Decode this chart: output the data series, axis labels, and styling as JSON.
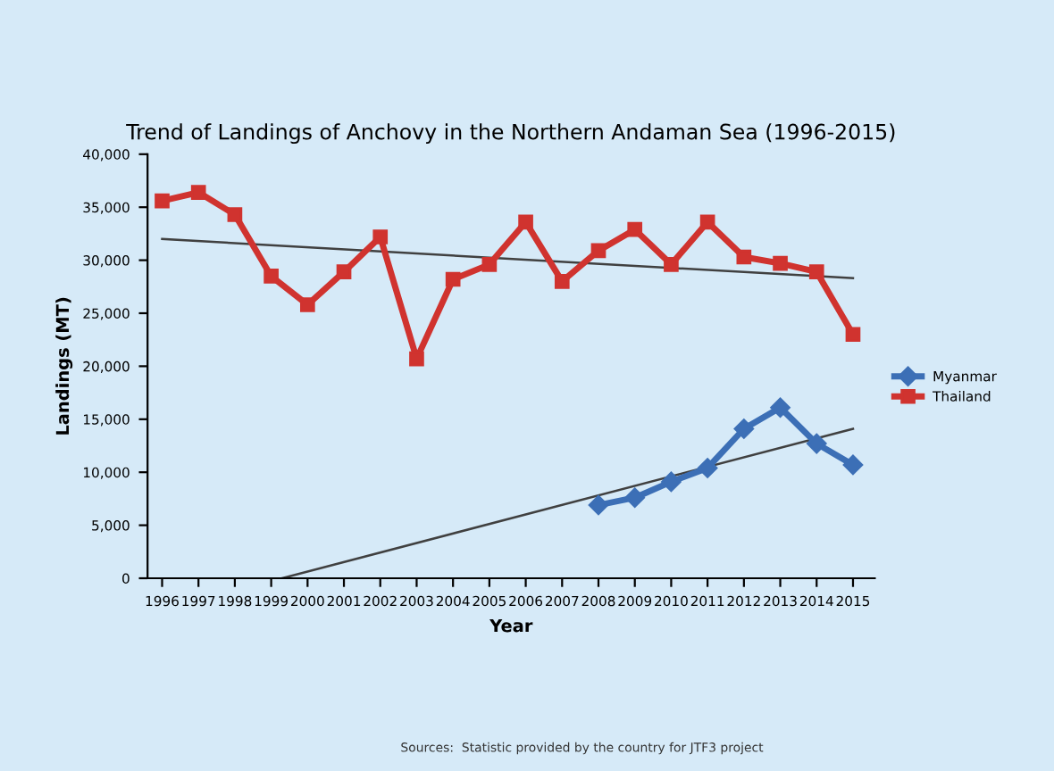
{
  "chart_data": {
    "type": "line",
    "title": "Trend of Landings of Anchovy in the Northern Andaman Sea (1996-2015)",
    "xlabel": "Year",
    "ylabel": "Landings (MT)",
    "x": [
      1996,
      1997,
      1998,
      1999,
      2000,
      2001,
      2002,
      2003,
      2004,
      2005,
      2006,
      2007,
      2008,
      2009,
      2010,
      2011,
      2012,
      2013,
      2014,
      2015
    ],
    "series": [
      {
        "name": "Myanmar",
        "color": "#3c6fb6",
        "marker": "diamond",
        "values": [
          null,
          null,
          null,
          null,
          null,
          null,
          null,
          null,
          null,
          null,
          null,
          null,
          6900,
          7600,
          9100,
          10400,
          14100,
          16100,
          12700,
          10700
        ]
      },
      {
        "name": "Thailand",
        "color": "#d0332f",
        "marker": "square",
        "values": [
          35600,
          36400,
          34300,
          28500,
          25800,
          28900,
          32200,
          20700,
          28200,
          29600,
          33600,
          28000,
          30900,
          32900,
          29600,
          33600,
          30300,
          29700,
          28900,
          23000
        ]
      },
      {
        "type": "line",
        "color": "#404040",
        "marker": "none",
        "x": [
          1996,
          2015
        ],
        "values": [
          32000,
          28300
        ]
      },
      {
        "type": "line",
        "color": "#404040",
        "marker": "none",
        "x": [
          1999.3,
          2015
        ],
        "values": [
          0,
          14100
        ]
      }
    ],
    "xlim": [
      1995.6,
      2015.6
    ],
    "xticks": [
      1996,
      1997,
      1998,
      1999,
      2000,
      2001,
      2002,
      2003,
      2004,
      2005,
      2006,
      2007,
      2008,
      2009,
      2010,
      2011,
      2012,
      2013,
      2014,
      2015
    ],
    "ylim": [
      0,
      40000
    ],
    "yticks": [
      0,
      {
        "value": 5000,
        "label": "5,000"
      },
      {
        "value": 10000,
        "label": "10,000"
      },
      {
        "value": 15000,
        "label": "15,000"
      },
      {
        "value": 20000,
        "label": "20,000"
      },
      {
        "value": 25000,
        "label": "25,000"
      },
      {
        "value": 30000,
        "label": "30,000"
      },
      {
        "value": 35000,
        "label": "35,000"
      },
      {
        "value": 40000,
        "label": "40,000"
      }
    ],
    "grid": false,
    "legend": "right",
    "annotations": [
      "Sources:  Statistic provided by the country for JTF3 project"
    ]
  }
}
